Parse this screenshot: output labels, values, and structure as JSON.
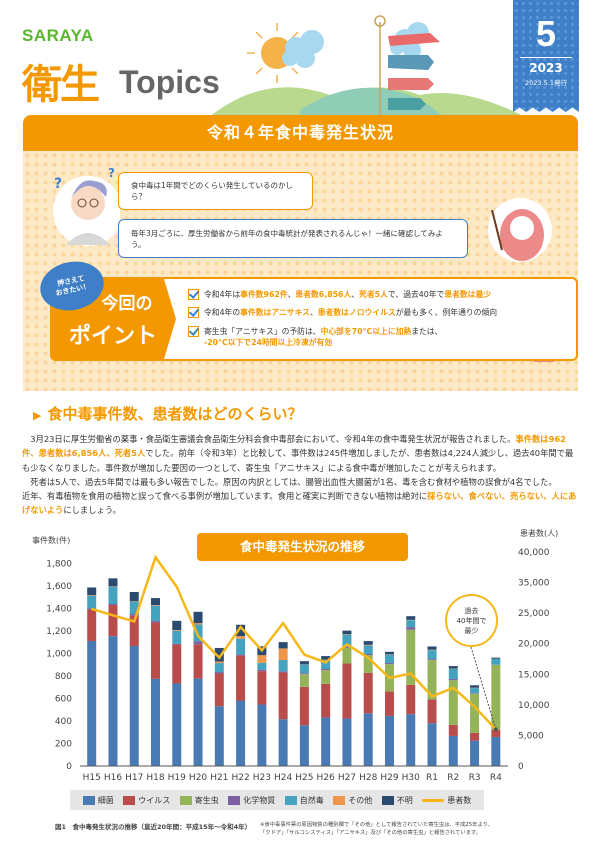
{
  "header": {
    "brand": "SARAYA",
    "title_kanji": "衛生",
    "title_latin": "Topics",
    "issue_number": "5",
    "issue_year": "2023",
    "issue_date": "2023.5.1発行"
  },
  "banner_title": "令和４年食中毒発生状況",
  "dialogue": {
    "question": "食中毒は1年間でどのくらい発生しているのかしら？",
    "answer": "毎年3月ごろに、厚生労働省から前年の食中毒統計が発表されるんじゃ！一緒に確認してみよう。"
  },
  "points": {
    "badge": "押さえて\nおきたい！",
    "label_top": "今回の",
    "label_bottom": "ポイント",
    "items": [
      {
        "segments": [
          {
            "text": "令和4年は",
            "hl": false
          },
          {
            "text": "事件数962件",
            "hl": true
          },
          {
            "text": "、",
            "hl": false
          },
          {
            "text": "患者数6,856人",
            "hl": true
          },
          {
            "text": "、",
            "hl": false
          },
          {
            "text": "死者5人",
            "hl": true
          },
          {
            "text": "で、過去40年で",
            "hl": false
          },
          {
            "text": "患者数は最少",
            "hl": true
          }
        ]
      },
      {
        "segments": [
          {
            "text": "令和4年の",
            "hl": false
          },
          {
            "text": "事件数はアニサキス",
            "hl": true
          },
          {
            "text": "、",
            "hl": false
          },
          {
            "text": "患者数はノロウイルス",
            "hl": true
          },
          {
            "text": "が最も多く、例年通りの傾向",
            "hl": false
          }
        ]
      },
      {
        "segments": [
          {
            "text": "寄生虫「アニサキス」の予防は、",
            "hl": false
          },
          {
            "text": "中心部を70°C以上に加熱",
            "hl": true
          },
          {
            "text": "または、",
            "hl": false
          },
          {
            "text": "-20°C以下で24時間以上冷凍が有効",
            "hl": true,
            "block": true
          }
        ]
      }
    ]
  },
  "section": {
    "heading": "食中毒事件数、患者数はどのくらい？",
    "paragraphs": [
      {
        "indent": true,
        "segments": [
          {
            "text": "3月23日に厚生労働省の薬事・食品衛生審議会食品衛生分科会食中毒部会において、令和4年の食中毒発生状況が報告されました。",
            "hl": false
          },
          {
            "text": "事件数は962件、患者数は6,856人、死者5人",
            "hl": true
          },
          {
            "text": "でした。前年（令和3年）と比較して、事件数は245件増加しましたが、患者数は4,224人減少し、過去40年間で最も少なくなりました。事件数が増加した要因の一つとして、寄生虫「アニサキス」による食中毒が増加したことが考えられます。",
            "hl": false
          }
        ]
      },
      {
        "indent": true,
        "segments": [
          {
            "text": "死者は5人で、過去5年間では最も多い報告でした。原因の内訳としては、腸管出血性大腸菌が1名、毒を含む食材や植物の誤食が4名でした。",
            "hl": false
          }
        ]
      },
      {
        "indent": false,
        "segments": [
          {
            "text": "近年、有毒植物を食用の植物と誤って食べる事例が増加しています。食用と確実に判断できない植物は絶対に",
            "hl": false
          },
          {
            "text": "採らない、食べない、売らない、人にあげないよう",
            "hl": true
          },
          {
            "text": "にしましょう。",
            "hl": false
          }
        ]
      }
    ]
  },
  "chart_data": {
    "type": "bar",
    "stacked": true,
    "title": "食中毒発生状況の推移",
    "ylabel_left": "事件数(件)",
    "ylabel_right": "患者数(人)",
    "ylim_left": [
      0,
      1900
    ],
    "ylim_right": [
      0,
      40000
    ],
    "left_ticks": [
      "0",
      "200",
      "400",
      "600",
      "800",
      "1,000",
      "1,200",
      "1,400",
      "1,600",
      "1,800"
    ],
    "right_ticks": [
      "0",
      "5,000",
      "10,000",
      "15,000",
      "20,000",
      "25,000",
      "35,000",
      "40,000"
    ],
    "grid": false,
    "legend_position": "bottom",
    "categories": [
      "H15",
      "H16",
      "H17",
      "H18",
      "H19",
      "H20",
      "H21",
      "H22",
      "H23",
      "H24",
      "H25",
      "H26",
      "H27",
      "H28",
      "H29",
      "H30",
      "R1",
      "R2",
      "R3",
      "R4"
    ],
    "series": [
      {
        "name": "細菌",
        "color": "#4a7ab4",
        "values": [
          1110,
          1153,
          1065,
          774,
          733,
          778,
          531,
          581,
          546,
          415,
          362,
          430,
          421,
          468,
          445,
          460,
          380,
          267,
          225,
          258
        ]
      },
      {
        "name": "ウイルス",
        "color": "#b94d4b",
        "values": [
          280,
          276,
          269,
          501,
          346,
          303,
          290,
          399,
          296,
          416,
          341,
          299,
          489,
          359,
          216,
          260,
          210,
          98,
          69,
          63
        ]
      },
      {
        "name": "寄生虫",
        "color": "#95b45a",
        "values": [
          0,
          0,
          0,
          0,
          0,
          0,
          0,
          0,
          0,
          0,
          112,
          122,
          140,
          157,
          243,
          490,
          350,
          397,
          348,
          577
        ]
      },
      {
        "name": "化学物質",
        "color": "#7b5fa0",
        "values": [
          8,
          9,
          15,
          12,
          5,
          27,
          13,
          9,
          12,
          10,
          9,
          10,
          10,
          10,
          10,
          23,
          9,
          10,
          5,
          2
        ]
      },
      {
        "name": "自然毒",
        "color": "#46a3c0",
        "values": [
          115,
          154,
          110,
          136,
          117,
          148,
          80,
          140,
          62,
          100,
          77,
          80,
          108,
          77,
          74,
          62,
          80,
          90,
          45,
          50
        ]
      },
      {
        "name": "その他",
        "color": "#f0964a",
        "values": [
          5,
          3,
          3,
          5,
          6,
          12,
          14,
          24,
          68,
          103,
          2,
          3,
          4,
          5,
          3,
          3,
          4,
          3,
          3,
          2
        ]
      },
      {
        "name": "不明",
        "color": "#2b4a70",
        "values": [
          67,
          71,
          83,
          63,
          82,
          101,
          120,
          101,
          78,
          56,
          28,
          32,
          30,
          33,
          23,
          32,
          28,
          22,
          22,
          10
        ]
      }
    ],
    "line": {
      "name": "患者数",
      "color": "#f5b818",
      "axis": "right",
      "values": [
        29355,
        28175,
        27019,
        39026,
        33477,
        24303,
        20249,
        25972,
        21616,
        26699,
        20802,
        19355,
        22718,
        20252,
        16464,
        17282,
        13018,
        14613,
        11080,
        6856
      ]
    },
    "annotation": {
      "category": "R4",
      "text": "過去\n40年間で\n最少"
    }
  },
  "caption": "図1　食中毒発生状況の推移（直近20年間：平成15年〜令和4年）",
  "note": "※食中毒事件票の原因物質の種別欄で「その他」として報告されていた寄生虫は、平成25年より、「クドア」「サルコシスティス」「アニサキス」及び「その他の寄生虫」と報告されています。",
  "colors": {
    "accent": "#f39800",
    "brand_green": "#5cb531",
    "ribbon_blue": "#3f7fc8"
  }
}
